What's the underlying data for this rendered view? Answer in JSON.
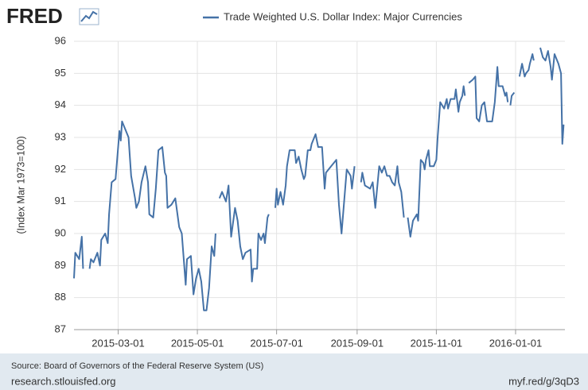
{
  "header": {
    "logo": "FRED"
  },
  "chart_data": {
    "type": "line",
    "y_label": "(Index Mar 1973=100)",
    "x": [
      "2015-01-26",
      "2015-01-27",
      "2015-01-30",
      "2015-02-01",
      "2015-02-02",
      "2015-02-05",
      "2015-02-07",
      "2015-02-08",
      "2015-02-10",
      "2015-02-13",
      "2015-02-15",
      "2015-02-16",
      "2015-02-19",
      "2015-02-21",
      "2015-02-22",
      "2015-02-24",
      "2015-02-27",
      "2015-03-01",
      "2015-03-02",
      "2015-03-03",
      "2015-03-04",
      "2015-03-07",
      "2015-03-09",
      "2015-03-11",
      "2015-03-14",
      "2015-03-15",
      "2015-03-17",
      "2015-03-19",
      "2015-03-22",
      "2015-03-24",
      "2015-03-25",
      "2015-03-28",
      "2015-03-30",
      "2015-04-01",
      "2015-04-04",
      "2015-04-06",
      "2015-04-07",
      "2015-04-08",
      "2015-04-11",
      "2015-04-14",
      "2015-04-17",
      "2015-04-19",
      "2015-04-22",
      "2015-04-23",
      "2015-04-26",
      "2015-04-28",
      "2015-04-30",
      "2015-05-02",
      "2015-05-04",
      "2015-05-06",
      "2015-05-08",
      "2015-05-10",
      "2015-05-12",
      "2015-05-14",
      "2015-05-15",
      "2015-05-17",
      "2015-05-18",
      "2015-05-20",
      "2015-05-23",
      "2015-05-25",
      "2015-05-27",
      "2015-05-30",
      "2015-06-01",
      "2015-06-03",
      "2015-06-05",
      "2015-06-07",
      "2015-06-11",
      "2015-06-12",
      "2015-06-13",
      "2015-06-16",
      "2015-06-17",
      "2015-06-19",
      "2015-06-21",
      "2015-06-22",
      "2015-06-24",
      "2015-06-25",
      "2015-06-28",
      "2015-06-30",
      "2015-07-01",
      "2015-07-02",
      "2015-07-04",
      "2015-07-06",
      "2015-07-08",
      "2015-07-09",
      "2015-07-11",
      "2015-07-15",
      "2015-07-16",
      "2015-07-18",
      "2015-07-20",
      "2015-07-22",
      "2015-07-23",
      "2015-07-25",
      "2015-07-27",
      "2015-07-28",
      "2015-07-31",
      "2015-08-02",
      "2015-08-05",
      "2015-08-07",
      "2015-08-08",
      "2015-08-12",
      "2015-08-16",
      "2015-08-18",
      "2015-08-20",
      "2015-08-22",
      "2015-08-24",
      "2015-08-27",
      "2015-08-28",
      "2015-08-30",
      "2015-09-02",
      "2015-09-04",
      "2015-09-05",
      "2015-09-07",
      "2015-09-11",
      "2015-09-13",
      "2015-09-15",
      "2015-09-18",
      "2015-09-20",
      "2015-09-22",
      "2015-09-24",
      "2015-09-26",
      "2015-09-28",
      "2015-09-30",
      "2015-10-02",
      "2015-10-03",
      "2015-10-05",
      "2015-10-07",
      "2015-10-09",
      "2015-10-10",
      "2015-10-12",
      "2015-10-14",
      "2015-10-17",
      "2015-10-18",
      "2015-10-20",
      "2015-10-22",
      "2015-10-23",
      "2015-10-24",
      "2015-10-26",
      "2015-10-27",
      "2015-10-30",
      "2015-11-01",
      "2015-11-02",
      "2015-11-04",
      "2015-11-07",
      "2015-11-09",
      "2015-11-10",
      "2015-11-12",
      "2015-11-15",
      "2015-11-16",
      "2015-11-18",
      "2015-11-19",
      "2015-11-21",
      "2015-11-22",
      "2015-11-23",
      "2015-11-25",
      "2015-11-26",
      "2015-11-29",
      "2015-12-01",
      "2015-12-02",
      "2015-12-04",
      "2015-12-06",
      "2015-12-08",
      "2015-12-10",
      "2015-12-12",
      "2015-12-14",
      "2015-12-16",
      "2015-12-18",
      "2015-12-19",
      "2015-12-22",
      "2015-12-24",
      "2015-12-25",
      "2015-12-26",
      "2015-12-27",
      "2015-12-28",
      "2015-12-29",
      "2015-12-31",
      "2016-01-01",
      "2016-01-04",
      "2016-01-06",
      "2016-01-08",
      "2016-01-09",
      "2016-01-11",
      "2016-01-12",
      "2016-01-14",
      "2016-01-15",
      "2016-01-18",
      "2016-01-20",
      "2016-01-22",
      "2016-01-24",
      "2016-01-26",
      "2016-01-28",
      "2016-01-29",
      "2016-01-31",
      "2016-02-03",
      "2016-02-05",
      "2016-02-06",
      "2016-02-07"
    ],
    "series": [
      {
        "name": "Trade Weighted U.S. Dollar Index: Major Currencies",
        "color": "#4572a7",
        "values": [
          88.6,
          89.4,
          89.2,
          89.9,
          88.9,
          null,
          88.9,
          89.2,
          89.1,
          89.4,
          89.0,
          89.8,
          90.0,
          89.7,
          90.6,
          91.6,
          91.7,
          92.7,
          93.2,
          92.9,
          93.5,
          93.2,
          93.0,
          91.8,
          91.1,
          90.8,
          91.0,
          91.6,
          92.1,
          91.6,
          90.6,
          90.5,
          91.4,
          92.6,
          92.7,
          91.9,
          91.8,
          90.8,
          90.9,
          91.1,
          90.2,
          90.0,
          88.4,
          89.2,
          89.3,
          88.1,
          88.6,
          88.9,
          88.5,
          87.6,
          87.6,
          88.3,
          89.6,
          89.3,
          90.0,
          null,
          91.1,
          91.3,
          91.0,
          91.5,
          89.9,
          90.8,
          90.4,
          89.6,
          89.2,
          89.4,
          89.5,
          88.5,
          88.9,
          88.9,
          90.0,
          89.8,
          90.0,
          89.7,
          90.5,
          90.6,
          null,
          90.8,
          91.4,
          90.9,
          91.3,
          90.9,
          91.5,
          92.1,
          92.6,
          92.6,
          92.2,
          92.4,
          92.0,
          91.7,
          91.8,
          92.6,
          92.6,
          92.8,
          93.1,
          92.7,
          92.7,
          91.4,
          91.9,
          92.1,
          92.3,
          90.9,
          90.0,
          91.0,
          92.0,
          91.8,
          91.4,
          92.1,
          null,
          91.6,
          91.9,
          91.5,
          91.4,
          91.6,
          90.8,
          92.1,
          91.9,
          92.1,
          91.8,
          91.8,
          91.6,
          91.5,
          92.1,
          91.6,
          91.3,
          90.5,
          null,
          90.5,
          89.9,
          90.4,
          90.6,
          90.4,
          92.3,
          92.2,
          92.0,
          92.3,
          92.6,
          92.1,
          92.1,
          92.3,
          93.0,
          94.1,
          93.9,
          94.2,
          93.9,
          94.2,
          94.2,
          94.5,
          93.8,
          94.1,
          94.3,
          94.6,
          94.3,
          null,
          94.7,
          94.8,
          94.9,
          93.6,
          93.5,
          94.0,
          94.1,
          93.5,
          93.5,
          93.5,
          94.1,
          95.2,
          94.6,
          94.6,
          94.3,
          94.4,
          94.1,
          null,
          94.0,
          94.3,
          94.4,
          null,
          94.9,
          95.3,
          94.9,
          95.0,
          95.1,
          95.3,
          95.6,
          95.4,
          null,
          95.8,
          95.5,
          95.4,
          95.7,
          95.2,
          94.8,
          95.6,
          95.3,
          95.0,
          92.8,
          93.4
        ]
      }
    ],
    "xlim": [
      "2015-01-26",
      "2016-02-08"
    ],
    "xticks": [
      "2015-03-01",
      "2015-05-01",
      "2015-07-01",
      "2015-09-01",
      "2015-11-01",
      "2016-01-01"
    ],
    "ylim": [
      87,
      96
    ],
    "yticks": [
      87,
      88,
      89,
      90,
      91,
      92,
      93,
      94,
      95,
      96
    ],
    "grid": true
  },
  "footer": {
    "source": "Source: Board of Governors of the Federal Reserve System (US)",
    "site": "research.stlouisfed.org",
    "short_link": "myf.red/g/3qD3"
  }
}
